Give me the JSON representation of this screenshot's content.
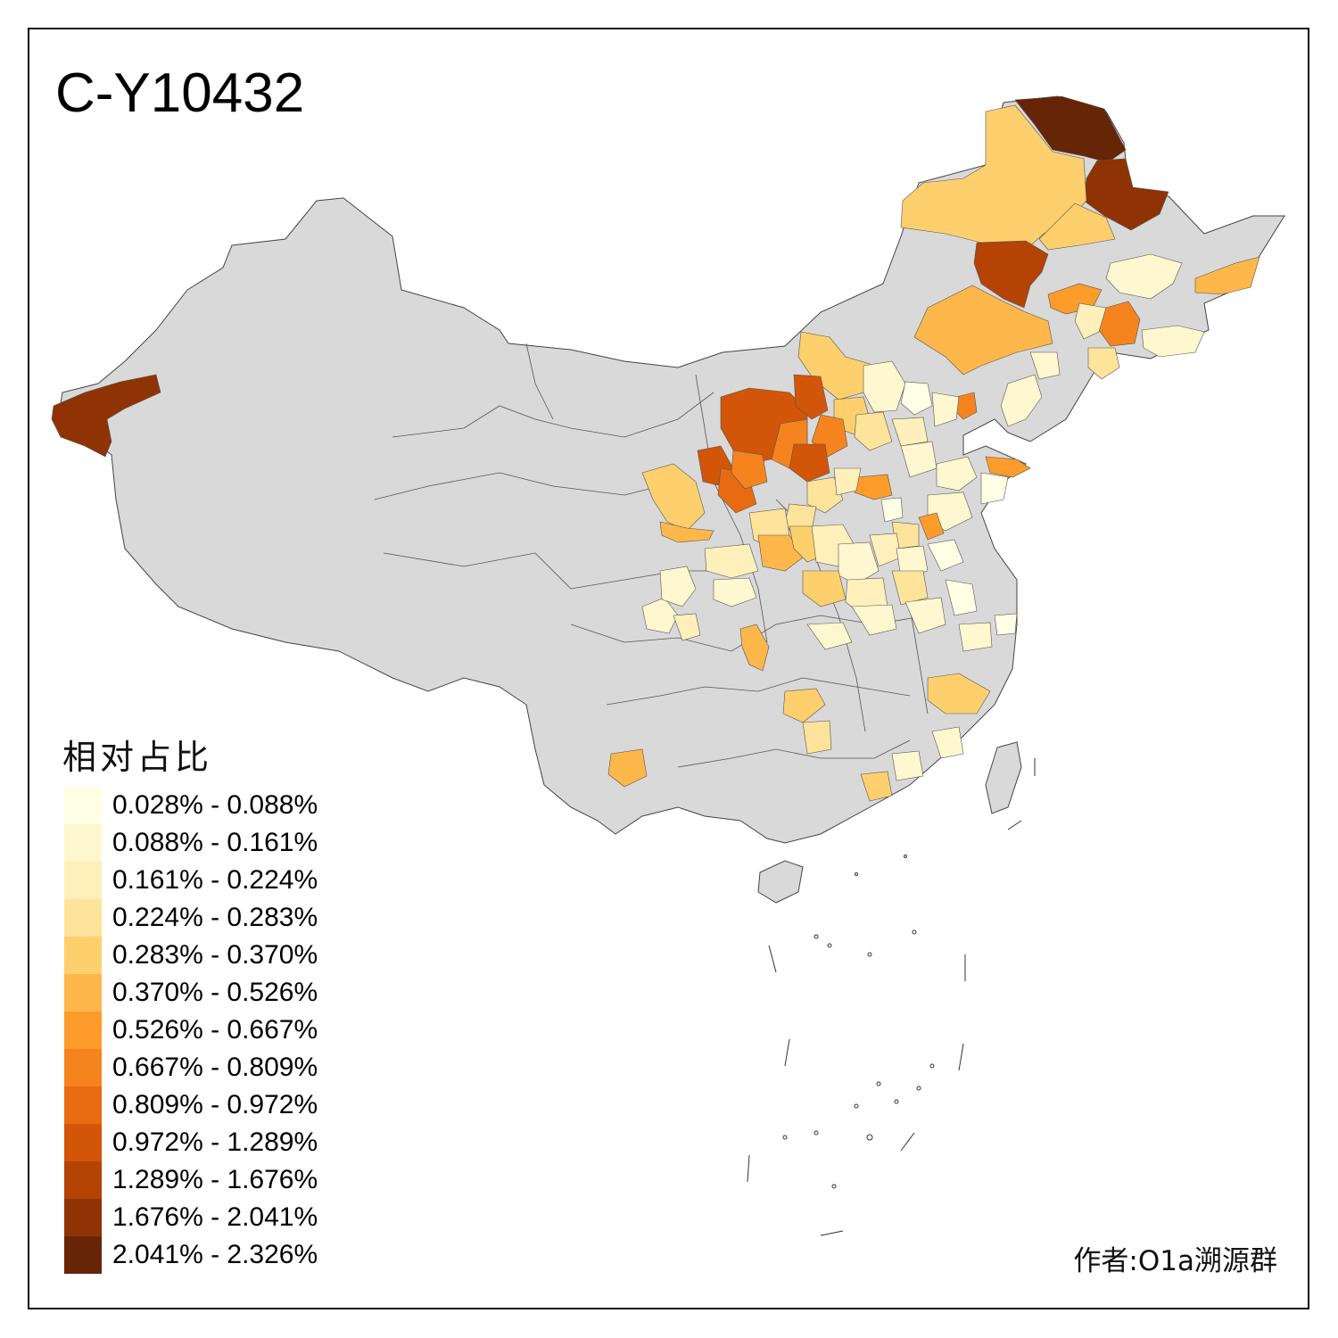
{
  "map": {
    "title": "C-Y10432",
    "author": "作者:O1a溯源群",
    "base_fill": "#d9d9d9",
    "border_color": "#444444"
  },
  "legend": {
    "title": "相对占比",
    "items": [
      {
        "label": "0.028% - 0.088%",
        "color": "#ffffe5"
      },
      {
        "label": "0.088% - 0.161%",
        "color": "#fff7cf"
      },
      {
        "label": "0.161% - 0.224%",
        "color": "#feefbb"
      },
      {
        "label": "0.224% - 0.283%",
        "color": "#fee39b"
      },
      {
        "label": "0.283% - 0.370%",
        "color": "#fed06d"
      },
      {
        "label": "0.370% - 0.526%",
        "color": "#feb74a"
      },
      {
        "label": "0.526% - 0.667%",
        "color": "#fd9c2b"
      },
      {
        "label": "0.667% - 0.809%",
        "color": "#f5841f"
      },
      {
        "label": "0.809% - 0.972%",
        "color": "#e86b12"
      },
      {
        "label": "0.972% - 1.289%",
        "color": "#d25508"
      },
      {
        "label": "1.289% - 1.676%",
        "color": "#b44304"
      },
      {
        "label": "1.676% - 2.041%",
        "color": "#8f3305"
      },
      {
        "label": "2.041% - 2.326%",
        "color": "#662506"
      }
    ]
  }
}
